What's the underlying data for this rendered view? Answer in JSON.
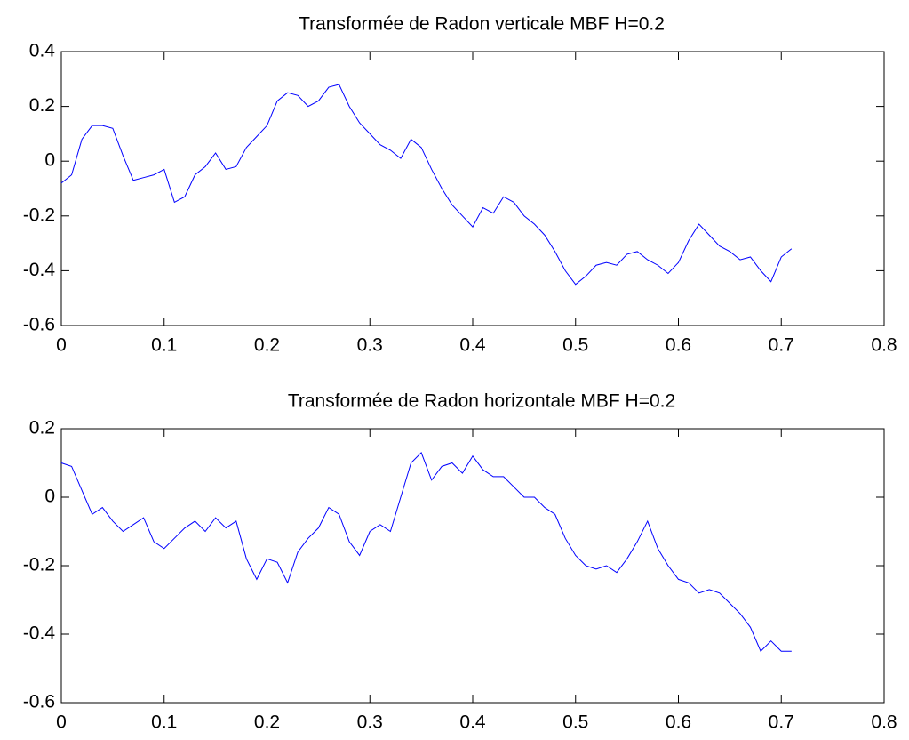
{
  "chart_data": [
    {
      "type": "line",
      "title": "Transformée de Radon verticale MBF H=0.2",
      "x": [
        0,
        0.01,
        0.02,
        0.03,
        0.04,
        0.05,
        0.06,
        0.07,
        0.08,
        0.09,
        0.1,
        0.11,
        0.12,
        0.13,
        0.14,
        0.15,
        0.16,
        0.17,
        0.18,
        0.19,
        0.2,
        0.21,
        0.22,
        0.23,
        0.24,
        0.25,
        0.26,
        0.27,
        0.28,
        0.29,
        0.3,
        0.31,
        0.32,
        0.33,
        0.34,
        0.35,
        0.36,
        0.37,
        0.38,
        0.39,
        0.4,
        0.41,
        0.42,
        0.43,
        0.44,
        0.45,
        0.46,
        0.47,
        0.48,
        0.49,
        0.5,
        0.51,
        0.52,
        0.53,
        0.54,
        0.55,
        0.56,
        0.57,
        0.58,
        0.59,
        0.6,
        0.61,
        0.62,
        0.63,
        0.64,
        0.65,
        0.66,
        0.67,
        0.68,
        0.69,
        0.7,
        0.71
      ],
      "values": [
        -0.08,
        -0.05,
        0.08,
        0.13,
        0.13,
        0.12,
        0.02,
        -0.07,
        -0.06,
        -0.05,
        -0.03,
        -0.15,
        -0.13,
        -0.05,
        -0.02,
        0.03,
        -0.03,
        -0.02,
        0.05,
        0.09,
        0.13,
        0.22,
        0.25,
        0.24,
        0.2,
        0.22,
        0.27,
        0.28,
        0.2,
        0.14,
        0.1,
        0.06,
        0.04,
        0.01,
        0.08,
        0.05,
        -0.03,
        -0.1,
        -0.16,
        -0.2,
        -0.24,
        -0.17,
        -0.19,
        -0.13,
        -0.15,
        -0.2,
        -0.23,
        -0.27,
        -0.33,
        -0.4,
        -0.45,
        -0.42,
        -0.38,
        -0.37,
        -0.38,
        -0.34,
        -0.33,
        -0.36,
        -0.38,
        -0.41,
        -0.37,
        -0.29,
        -0.23,
        -0.27,
        -0.31,
        -0.33,
        -0.36,
        -0.35,
        -0.4,
        -0.44,
        -0.35,
        -0.32
      ],
      "color": "#0000ff",
      "xlim": [
        0,
        0.8
      ],
      "xticks": [
        0,
        0.1,
        0.2,
        0.3,
        0.4,
        0.5,
        0.6,
        0.7,
        0.8
      ],
      "ylim": [
        -0.6,
        0.4
      ],
      "yticks": [
        -0.6,
        -0.4,
        -0.2,
        0,
        0.2,
        0.4
      ]
    },
    {
      "type": "line",
      "title": "Transformée de Radon horizontale MBF H=0.2",
      "x": [
        0,
        0.01,
        0.02,
        0.03,
        0.04,
        0.05,
        0.06,
        0.07,
        0.08,
        0.09,
        0.1,
        0.11,
        0.12,
        0.13,
        0.14,
        0.15,
        0.16,
        0.17,
        0.18,
        0.19,
        0.2,
        0.21,
        0.22,
        0.23,
        0.24,
        0.25,
        0.26,
        0.27,
        0.28,
        0.29,
        0.3,
        0.31,
        0.32,
        0.33,
        0.34,
        0.35,
        0.36,
        0.37,
        0.38,
        0.39,
        0.4,
        0.41,
        0.42,
        0.43,
        0.44,
        0.45,
        0.46,
        0.47,
        0.48,
        0.49,
        0.5,
        0.51,
        0.52,
        0.53,
        0.54,
        0.55,
        0.56,
        0.57,
        0.58,
        0.59,
        0.6,
        0.61,
        0.62,
        0.63,
        0.64,
        0.65,
        0.66,
        0.67,
        0.68,
        0.69,
        0.7,
        0.71
      ],
      "values": [
        0.1,
        0.09,
        0.02,
        -0.05,
        -0.03,
        -0.07,
        -0.1,
        -0.08,
        -0.06,
        -0.13,
        -0.15,
        -0.12,
        -0.09,
        -0.07,
        -0.1,
        -0.06,
        -0.09,
        -0.07,
        -0.18,
        -0.24,
        -0.18,
        -0.19,
        -0.25,
        -0.16,
        -0.12,
        -0.09,
        -0.03,
        -0.05,
        -0.13,
        -0.17,
        -0.1,
        -0.08,
        -0.1,
        0,
        0.1,
        0.13,
        0.05,
        0.09,
        0.1,
        0.07,
        0.12,
        0.08,
        0.06,
        0.06,
        0.03,
        0,
        0,
        -0.03,
        -0.05,
        -0.12,
        -0.17,
        -0.2,
        -0.21,
        -0.2,
        -0.22,
        -0.18,
        -0.13,
        -0.07,
        -0.15,
        -0.2,
        -0.24,
        -0.25,
        -0.28,
        -0.27,
        -0.28,
        -0.31,
        -0.34,
        -0.38,
        -0.45,
        -0.42,
        -0.45,
        -0.45
      ],
      "color": "#0000ff",
      "xlim": [
        0,
        0.8
      ],
      "xticks": [
        0,
        0.1,
        0.2,
        0.3,
        0.4,
        0.5,
        0.6,
        0.7,
        0.8
      ],
      "ylim": [
        -0.6,
        0.2
      ],
      "yticks": [
        -0.6,
        -0.4,
        -0.2,
        0,
        0.2
      ]
    }
  ]
}
